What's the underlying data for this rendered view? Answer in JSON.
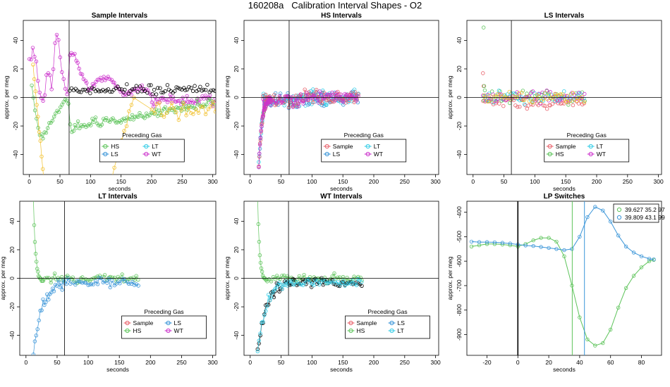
{
  "figure": {
    "title": "160208a   Calibration Interval Shapes - O2",
    "colors": {
      "Sample": "#e8606a",
      "HS": "#5ec45b",
      "LS": "#3a95d8",
      "LT": "#33cce6",
      "WT": "#cc33cc",
      "black": "#000000",
      "gold": "#f2c12e"
    }
  },
  "chart_data": [
    {
      "type": "scatter",
      "title": "Sample Intervals",
      "xlabel": "seconds",
      "ylabel": "approx. per meg",
      "xlim": [
        -10,
        305
      ],
      "ylim": [
        -54,
        54
      ],
      "xticks": [
        0,
        50,
        100,
        150,
        200,
        250,
        300
      ],
      "yticks": [
        -40,
        -20,
        0,
        20,
        40
      ],
      "vline": 65,
      "hline": 0,
      "legend": {
        "title": "Preceding Gas",
        "entries": [
          "HS",
          "LT",
          "LS",
          "WT"
        ],
        "colors": [
          "HS",
          "LT",
          "LS",
          "WT"
        ],
        "position": "bottom-center"
      },
      "series": [
        {
          "name": "WT",
          "color": "WT",
          "kind": "wt_sample"
        },
        {
          "name": "HS",
          "color": "HS",
          "kind": "hs_sample"
        },
        {
          "name": "black",
          "color": "black",
          "kind": "black_sample"
        },
        {
          "name": "gold",
          "color": "gold",
          "kind": "gold_sample"
        }
      ]
    },
    {
      "type": "scatter",
      "title": "HS Intervals",
      "xlabel": "seconds",
      "ylabel": "approx. per meg",
      "xlim": [
        -10,
        305
      ],
      "ylim": [
        -54,
        54
      ],
      "xticks": [
        0,
        50,
        100,
        150,
        200,
        250,
        300
      ],
      "yticks": [
        -40,
        -20,
        0,
        20,
        40
      ],
      "vline": 63,
      "hline": 0,
      "legend": {
        "title": "Preceding Gas",
        "entries": [
          "Sample",
          "LT",
          "LS",
          "WT"
        ],
        "colors": [
          "Sample",
          "LT",
          "LS",
          "WT"
        ],
        "position": "bottom-center"
      },
      "series": [
        {
          "name": "LS",
          "color": "LS",
          "kind": "settle_cluster"
        },
        {
          "name": "LT",
          "color": "LT",
          "kind": "settle_cluster"
        },
        {
          "name": "Sample",
          "color": "Sample",
          "kind": "settle_cluster"
        },
        {
          "name": "WT",
          "color": "WT",
          "kind": "settle_cluster"
        }
      ]
    },
    {
      "type": "scatter",
      "title": "LS Intervals",
      "xlabel": "seconds",
      "ylabel": "approx. per meg",
      "xlim": [
        -10,
        305
      ],
      "ylim": [
        -54,
        54
      ],
      "xticks": [
        0,
        50,
        100,
        150,
        200,
        250,
        300
      ],
      "yticks": [
        -40,
        -20,
        0,
        20,
        40
      ],
      "vline": 62,
      "hline": 0,
      "legend": {
        "title": "Preceding Gas",
        "entries": [
          "Sample",
          "LT",
          "HS",
          "WT"
        ],
        "colors": [
          "Sample",
          "LT",
          "HS",
          "WT"
        ],
        "position": "bottom-center"
      },
      "series": [
        {
          "name": "Sample",
          "color": "Sample",
          "kind": "flat_cluster"
        },
        {
          "name": "HS",
          "color": "HS",
          "kind": "flat_cluster"
        },
        {
          "name": "LT",
          "color": "LT",
          "kind": "flat_cluster"
        },
        {
          "name": "WT",
          "color": "WT",
          "kind": "flat_cluster"
        },
        {
          "name": "gold",
          "color": "gold",
          "kind": "flat_cluster"
        }
      ]
    },
    {
      "type": "scatter",
      "title": "LT Intervals",
      "xlabel": "seconds",
      "ylabel": "approx. per meg",
      "xlim": [
        -10,
        305
      ],
      "ylim": [
        -54,
        54
      ],
      "xticks": [
        0,
        50,
        100,
        150,
        200,
        250,
        300
      ],
      "yticks": [
        -40,
        -20,
        0,
        20,
        40
      ],
      "vline": 62,
      "hline": 0,
      "legend": {
        "title": "Preceding Gas",
        "entries": [
          "Sample",
          "LS",
          "HS",
          "WT"
        ],
        "colors": [
          "Sample",
          "LS",
          "HS",
          "WT"
        ],
        "position": "bottom-right"
      },
      "series": [
        {
          "name": "HS",
          "color": "HS",
          "kind": "decay_from_top"
        },
        {
          "name": "LS",
          "color": "LS",
          "kind": "rise_from_bottom"
        }
      ]
    },
    {
      "type": "scatter",
      "title": "WT Intervals",
      "xlabel": "seconds",
      "ylabel": "approx. per meg",
      "xlim": [
        -10,
        305
      ],
      "ylim": [
        -54,
        54
      ],
      "xticks": [
        0,
        50,
        100,
        150,
        200,
        250,
        300
      ],
      "yticks": [
        -40,
        -20,
        0,
        20,
        40
      ],
      "vline": 62,
      "hline": 0,
      "legend": {
        "title": "Preceding Gas",
        "entries": [
          "Sample",
          "LS",
          "HS",
          "LT"
        ],
        "colors": [
          "Sample",
          "LS",
          "HS",
          "LT"
        ],
        "position": "bottom-right"
      },
      "series": [
        {
          "name": "HS",
          "color": "HS",
          "kind": "decay_from_top"
        },
        {
          "name": "black",
          "color": "black",
          "kind": "rise_from_bottom"
        },
        {
          "name": "LT",
          "color": "LT",
          "kind": "rise_from_bottom"
        }
      ]
    },
    {
      "type": "line",
      "title": "LP Switches",
      "xlabel": "seconds",
      "ylabel": "approx. per meg",
      "xlim": [
        -33,
        93
      ],
      "ylim": [
        -985,
        -355
      ],
      "xticks": [
        -20,
        0,
        20,
        40,
        60,
        80
      ],
      "yticks": [
        -900,
        -800,
        -700,
        -600,
        -500,
        -400
      ],
      "vline": 0,
      "vlines": [
        {
          "x": 35.2,
          "color": "HS"
        },
        {
          "x": 43.1,
          "color": "LS"
        }
      ],
      "legend": {
        "entries": [
          "39.627 35.2 97",
          "39.809 43.1 99"
        ],
        "colors": [
          "HS",
          "LS"
        ],
        "position": "top-right"
      },
      "series": [
        {
          "name": "39.627 35.2 97",
          "color": "HS",
          "x": [
            -30,
            -25,
            -20,
            -15,
            -10,
            -5,
            0,
            5,
            10,
            15,
            20,
            25,
            30,
            35,
            40,
            45,
            50,
            55,
            60,
            65,
            70,
            75,
            80,
            85,
            88
          ],
          "y": [
            -540,
            -535,
            -530,
            -530,
            -532,
            -535,
            -540,
            -530,
            -515,
            -505,
            -505,
            -520,
            -580,
            -700,
            -830,
            -920,
            -945,
            -935,
            -880,
            -790,
            -710,
            -660,
            -625,
            -600,
            -595
          ]
        },
        {
          "name": "39.809 43.1 99",
          "color": "LS",
          "x": [
            -30,
            -25,
            -20,
            -15,
            -10,
            -5,
            0,
            5,
            10,
            15,
            20,
            25,
            30,
            35,
            40,
            45,
            50,
            55,
            60,
            65,
            70,
            75,
            80,
            85,
            88
          ],
          "y": [
            -520,
            -522,
            -522,
            -523,
            -525,
            -528,
            -532,
            -536,
            -538,
            -542,
            -546,
            -550,
            -555,
            -550,
            -500,
            -420,
            -378,
            -393,
            -438,
            -495,
            -540,
            -565,
            -580,
            -590,
            -593
          ]
        }
      ]
    }
  ]
}
